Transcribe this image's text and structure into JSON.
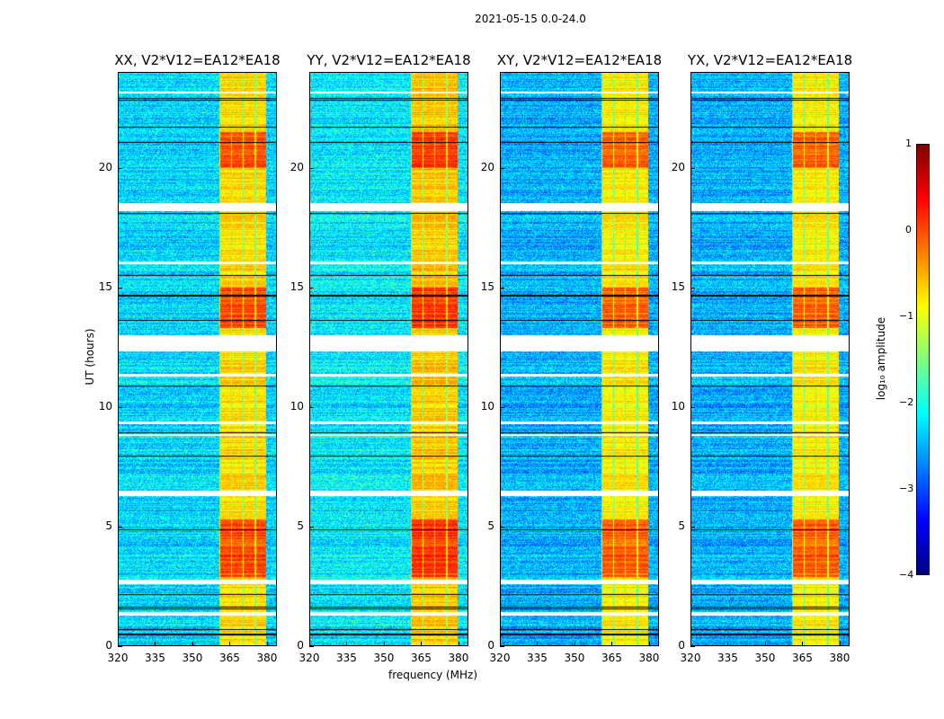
{
  "chart_data": {
    "type": "heatmap",
    "title": "2021-05-15 0.0-24.0",
    "xlabel": "frequency (MHz)",
    "ylabel": "UT (hours)",
    "xlim": [
      320,
      384
    ],
    "ylim": [
      0,
      24
    ],
    "xticks": [
      "320",
      "335",
      "350",
      "365",
      "380"
    ],
    "xtick_values": [
      320,
      335,
      350,
      365,
      380
    ],
    "yticks": [
      "0",
      "5",
      "10",
      "15",
      "20"
    ],
    "ytick_values": [
      0,
      5,
      10,
      15,
      20
    ],
    "panels": [
      {
        "title": "XX, V2*V12=EA12*EA18",
        "background_level": -2.3,
        "band_level": -0.7
      },
      {
        "title": "YY, V2*V12=EA12*EA18",
        "background_level": -2.2,
        "band_level": -0.6
      },
      {
        "title": "XY, V2*V12=EA12*EA18",
        "background_level": -2.5,
        "band_level": -0.8
      },
      {
        "title": "YX, V2*V12=EA12*EA18",
        "background_level": -2.5,
        "band_level": -0.8
      }
    ],
    "rfi_band_mhz": [
      360.5,
      379.5
    ],
    "strong_periods_hours": [
      [
        13.3,
        15.0
      ],
      [
        2.9,
        5.3
      ],
      [
        20.0,
        21.5
      ]
    ],
    "flagged_hours": [
      [
        18.2,
        18.55
      ],
      [
        12.35,
        13.0
      ],
      [
        6.3,
        6.5
      ],
      [
        2.6,
        2.8
      ],
      [
        1.28,
        1.45
      ],
      [
        9.3,
        9.4
      ],
      [
        8.8,
        8.88
      ],
      [
        11.3,
        11.4
      ],
      [
        16.0,
        16.1
      ],
      [
        23.1,
        23.2
      ]
    ],
    "colorbar": {
      "label": "log₁₀ amplitude",
      "range": [
        -4,
        1
      ],
      "ticks": [
        "1",
        "0",
        "−1",
        "−2",
        "−3",
        "−4"
      ],
      "tick_values": [
        1,
        0,
        -1,
        -2,
        -3,
        -4
      ],
      "colormap": "jet"
    }
  }
}
